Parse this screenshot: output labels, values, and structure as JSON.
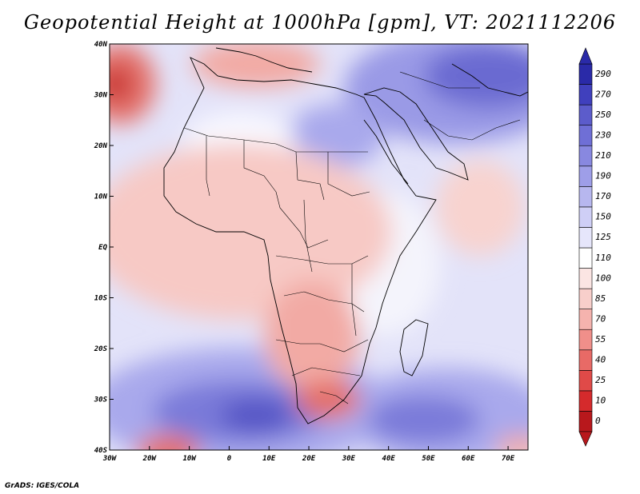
{
  "title": "Geopotential Height at 1000hPa [gpm], VT: 2021112206",
  "footer": "GrADS: IGES/COLA",
  "map": {
    "region": "Africa and Middle East",
    "lon_range": [
      -30,
      75
    ],
    "lat_range": [
      -40,
      40
    ],
    "x_ticks": [
      "30W",
      "20W",
      "10W",
      "0",
      "10E",
      "20E",
      "30E",
      "40E",
      "50E",
      "60E",
      "70E"
    ],
    "y_ticks": [
      "40S",
      "30S",
      "20S",
      "10S",
      "EQ",
      "10N",
      "20N",
      "30N",
      "40N"
    ]
  },
  "colorbar": {
    "labels": [
      "0",
      "10",
      "25",
      "40",
      "55",
      "70",
      "85",
      "100",
      "110",
      "125",
      "150",
      "170",
      "190",
      "210",
      "230",
      "250",
      "270",
      "290"
    ],
    "colors": [
      "#b8181c",
      "#d52a2c",
      "#e04a48",
      "#e86a66",
      "#f08f8a",
      "#f5b3ae",
      "#f8cfcb",
      "#fbe5e3",
      "#ffffff",
      "#e6e6fb",
      "#cfcff6",
      "#b7b7ef",
      "#9e9ee8",
      "#8888e0",
      "#6f6fd6",
      "#5c5ccb",
      "#4040bd",
      "#2a2aa8"
    ]
  }
}
